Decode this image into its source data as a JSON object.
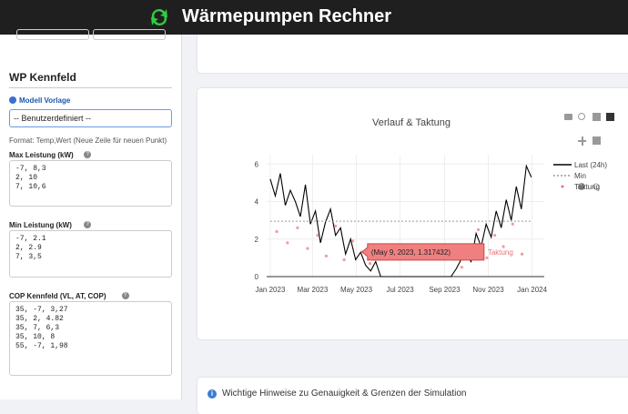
{
  "header": {
    "title": "Wärmepumpen Rechner"
  },
  "sidebar": {
    "section_title": "WP Kennfeld",
    "model_label": "Modell Vorlage",
    "model_select": "-- Benutzerdefiniert --",
    "format_hint": "Format: Temp,Wert (Neue Zeile für neuen Punkt)",
    "fields": [
      {
        "label": "Max Leistung (kW)",
        "lines": [
          "-7, 8,3",
          "2, 10",
          "7, 10,6"
        ]
      },
      {
        "label": "Min Leistung (kW)",
        "lines": [
          "-7, 2.1",
          "2, 2.9",
          "7, 3,5"
        ]
      },
      {
        "label": "COP Kennfeld (VL, AT, COP)",
        "lines": [
          "35, -7, 3,27",
          "35, 2, 4.82",
          "35, 7, 6,3",
          "35, 10, 8",
          "55, -7, 1,98"
        ]
      }
    ]
  },
  "notice": {
    "title": "Wichtige Hinweise zu Genauigkeit & Grenzen der Simulation"
  },
  "chart_data": {
    "type": "line",
    "title": "Verlauf & Taktung",
    "xlim": [
      "2022-12-27",
      "2024-01-18"
    ],
    "xticks": [
      {
        "value": "2023-01-01",
        "label": "Jan 2023"
      },
      {
        "value": "2023-03-01",
        "label": "Mar 2023"
      },
      {
        "value": "2023-05-01",
        "label": "May 2023"
      },
      {
        "value": "2023-07-01",
        "label": "Jul 2023"
      },
      {
        "value": "2023-09-01",
        "label": "Sep 2023"
      },
      {
        "value": "2023-11-01",
        "label": "Nov 2023"
      },
      {
        "value": "2024-01-01",
        "label": "Jan 2024"
      }
    ],
    "ylim": [
      0,
      6.5
    ],
    "yticks": [
      0,
      2,
      4,
      6
    ],
    "grid": true,
    "series": [
      {
        "name": "Last (24h)",
        "color": "#000000",
        "x": [
          "2023-01-01",
          "2023-01-08",
          "2023-01-15",
          "2023-01-22",
          "2023-01-29",
          "2023-02-05",
          "2023-02-12",
          "2023-02-19",
          "2023-02-26",
          "2023-03-05",
          "2023-03-12",
          "2023-03-19",
          "2023-03-26",
          "2023-04-02",
          "2023-04-09",
          "2023-04-16",
          "2023-04-23",
          "2023-04-30",
          "2023-05-07",
          "2023-05-14",
          "2023-05-21",
          "2023-05-28",
          "2023-06-04",
          "2023-06-11",
          "2023-06-18",
          "2023-06-25",
          "2023-07-02",
          "2023-07-09",
          "2023-07-16",
          "2023-07-23",
          "2023-07-30",
          "2023-08-06",
          "2023-08-13",
          "2023-08-20",
          "2023-08-27",
          "2023-09-03",
          "2023-09-10",
          "2023-09-17",
          "2023-09-24",
          "2023-10-01",
          "2023-10-08",
          "2023-10-15",
          "2023-10-22",
          "2023-10-29",
          "2023-11-05",
          "2023-11-12",
          "2023-11-19",
          "2023-11-26",
          "2023-12-03",
          "2023-12-10",
          "2023-12-17",
          "2023-12-24",
          "2023-12-31"
        ],
        "values": [
          5.2,
          4.3,
          5.5,
          3.8,
          4.6,
          4.0,
          3.2,
          4.9,
          2.8,
          3.5,
          1.8,
          2.9,
          3.6,
          2.2,
          2.6,
          1.2,
          2.0,
          0.9,
          1.3,
          0.6,
          0.3,
          0.8,
          0,
          0,
          0,
          0,
          0,
          0,
          0,
          0,
          0,
          0,
          0,
          0,
          0,
          0,
          0,
          0.4,
          0.9,
          1.2,
          0.8,
          2.3,
          1.6,
          2.8,
          2.1,
          3.5,
          2.6,
          4.1,
          3.0,
          4.8,
          3.6,
          5.9,
          5.3
        ]
      },
      {
        "name": "Min",
        "color": "#999999",
        "x": [
          "2023-01-01",
          "2023-12-31"
        ],
        "values": [
          2.95,
          2.95
        ]
      },
      {
        "name": "Taktung",
        "color": "#e57373",
        "x": [
          "2023-01-10",
          "2023-01-25",
          "2023-02-08",
          "2023-02-22",
          "2023-03-08",
          "2023-03-20",
          "2023-04-02",
          "2023-04-14",
          "2023-04-26",
          "2023-05-09",
          "2023-05-20",
          "2023-09-25",
          "2023-10-06",
          "2023-10-18",
          "2023-10-30",
          "2023-11-10",
          "2023-11-22",
          "2023-12-05",
          "2023-12-18"
        ],
        "values": [
          2.4,
          1.8,
          2.6,
          1.5,
          2.2,
          1.1,
          2.7,
          0.9,
          1.9,
          1.317432,
          0.7,
          0.5,
          1.4,
          2.5,
          1.0,
          2.2,
          1.6,
          2.8,
          1.2
        ]
      }
    ],
    "hover": {
      "label": "(May 9, 2023, 1.317432)",
      "trace": "Taktung"
    }
  }
}
